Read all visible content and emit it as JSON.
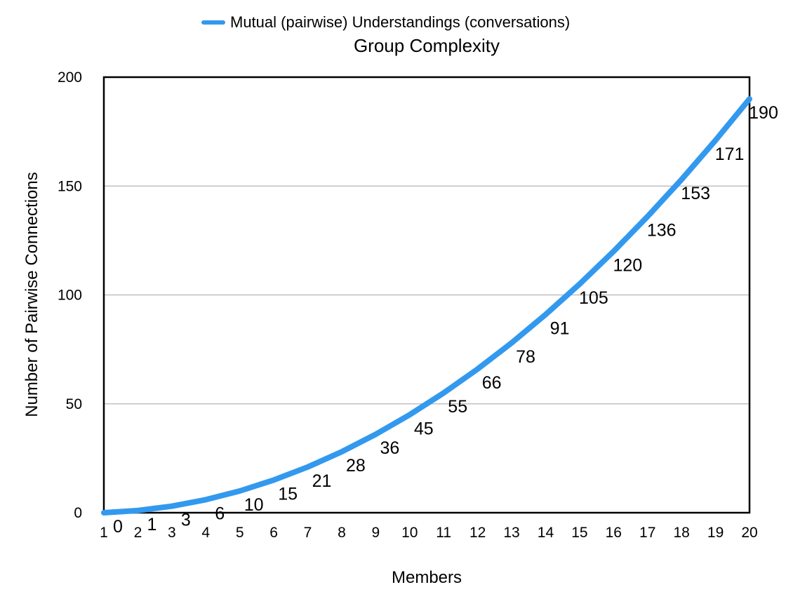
{
  "chart_data": {
    "type": "line",
    "title": "Group Complexity",
    "xlabel": "Members",
    "ylabel": "Number of Pairwise Connections",
    "legend": {
      "position": "top",
      "entries": [
        "Mutual (pairwise) Understandings (conversations)"
      ]
    },
    "x": [
      1,
      2,
      3,
      4,
      5,
      6,
      7,
      8,
      9,
      10,
      11,
      12,
      13,
      14,
      15,
      16,
      17,
      18,
      19,
      20
    ],
    "series": [
      {
        "name": "Mutual (pairwise) Understandings (conversations)",
        "color": "#3399EE",
        "values": [
          0,
          1,
          3,
          6,
          10,
          15,
          21,
          28,
          36,
          45,
          55,
          66,
          78,
          91,
          105,
          120,
          136,
          153,
          171,
          190
        ]
      }
    ],
    "yticks": [
      0,
      50,
      100,
      150,
      200
    ],
    "xlim": [
      1,
      20
    ],
    "ylim": [
      0,
      200
    ],
    "grid": "horizontal",
    "data_labels": true
  }
}
